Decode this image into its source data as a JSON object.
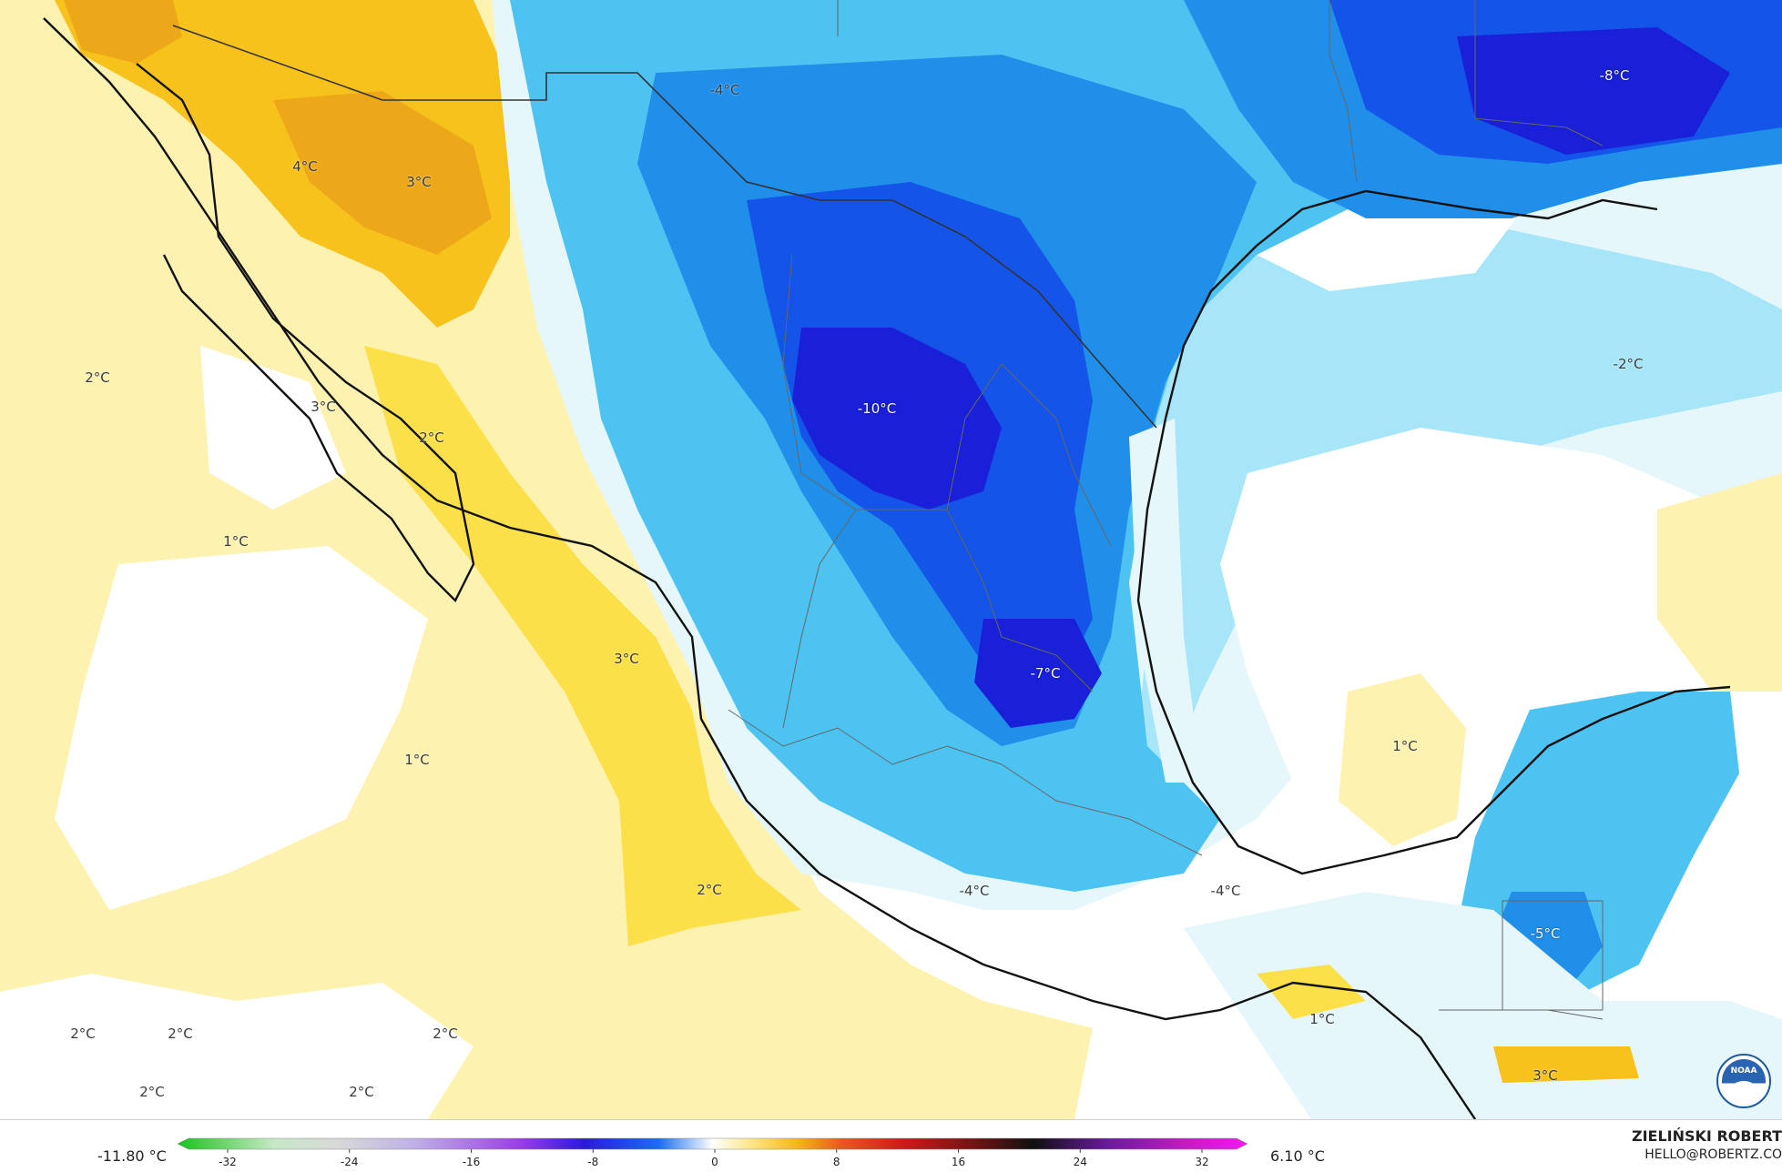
{
  "map": {
    "labels": [
      {
        "id": "gulf-california-north",
        "text": "4°C"
      },
      {
        "id": "sonora",
        "text": "3°C"
      },
      {
        "id": "pacific-west",
        "text": "2°C"
      },
      {
        "id": "baja-sur",
        "text": "3°C"
      },
      {
        "id": "sinaloa-coast",
        "text": "2°C"
      },
      {
        "id": "pacific-mid",
        "text": "1°C"
      },
      {
        "id": "pacific-jalisco",
        "text": "3°C"
      },
      {
        "id": "pacific-open",
        "text": "1°C"
      },
      {
        "id": "pacific-south",
        "text": "2°C"
      },
      {
        "id": "pacific-sw-1",
        "text": "2°C"
      },
      {
        "id": "pacific-sw-2",
        "text": "2°C"
      },
      {
        "id": "pacific-sw-3",
        "text": "2°C"
      },
      {
        "id": "pacific-sw-4",
        "text": "2°C"
      },
      {
        "id": "pacific-sw-5",
        "text": "2°C"
      },
      {
        "id": "texas-west",
        "text": "-4°C"
      },
      {
        "id": "louisiana",
        "text": "-8°C"
      },
      {
        "id": "coahuila",
        "text": "-10°C"
      },
      {
        "id": "gulf-east",
        "text": "-2°C"
      },
      {
        "id": "san-luis-potosi",
        "text": "-7°C"
      },
      {
        "id": "gulf-south",
        "text": "1°C"
      },
      {
        "id": "guerrero",
        "text": "-4°C"
      },
      {
        "id": "veracruz-south",
        "text": "-4°C"
      },
      {
        "id": "yucatan",
        "text": "-5°C"
      },
      {
        "id": "chiapas-coast",
        "text": "1°C"
      },
      {
        "id": "guatemala",
        "text": "3°C"
      }
    ]
  },
  "legend": {
    "min_value": "-11.80 °C",
    "max_value": "6.10 °C",
    "ticks": [
      "-32",
      "-24",
      "-16",
      "-8",
      "0",
      "8",
      "16",
      "24",
      "32"
    ]
  },
  "credit": {
    "name": "ZIELIŃSKI ROBERT",
    "email": "HELLO@ROBERTZ.CO"
  },
  "logo": {
    "text": "NOAA"
  },
  "colors": {
    "ocean_neutral": "#ffffff",
    "warm_pale": "#fdf2b0",
    "warm_mid": "#fbe04a",
    "warm_strong": "#f7c21c",
    "warm_deep": "#eda81a",
    "cold_pale": "#e6f7fc",
    "cold_light": "#a6e6f8",
    "cold_cyan": "#4dc3f2",
    "cold_mid": "#1f8fea",
    "cold_blue": "#1554e8",
    "cold_deep": "#1a20d8",
    "coastline": "#111111",
    "borders": "#555555"
  }
}
